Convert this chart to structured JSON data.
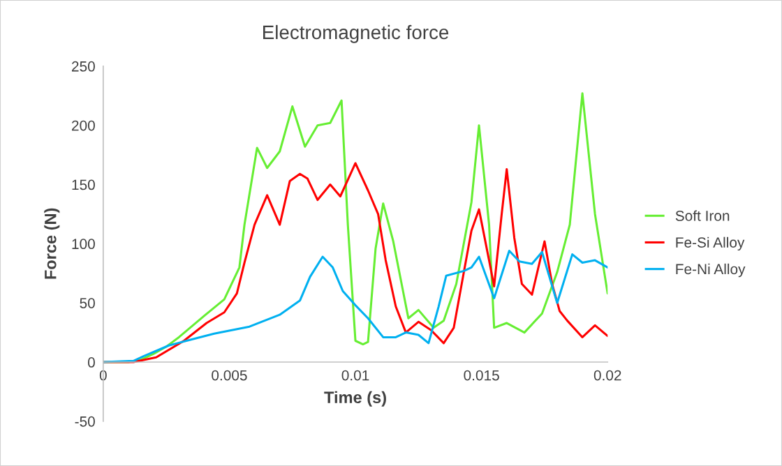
{
  "chart_data": {
    "type": "line",
    "title": "Electromagnetic force",
    "xlabel": "Time (s)",
    "ylabel": "Force (N)",
    "xlim": [
      0,
      0.02
    ],
    "ylim": [
      -50,
      250
    ],
    "xticks": [
      0,
      0.005,
      0.01,
      0.015,
      0.02
    ],
    "yticks": [
      -50,
      0,
      50,
      100,
      150,
      200,
      250
    ],
    "grid": false,
    "legend": "right",
    "marker": "none",
    "line_style": "solid",
    "series": [
      {
        "name": "Soft Iron",
        "color": "#66ee33",
        "x": [
          0,
          0.001,
          0.0015,
          0.002,
          0.0025,
          0.003,
          0.0035,
          0.004,
          0.0048,
          0.0054,
          0.0056,
          0.0061,
          0.0065,
          0.007,
          0.0075,
          0.008,
          0.0085,
          0.009,
          0.00945,
          0.0097,
          0.01,
          0.0103,
          0.0105,
          0.0108,
          0.0111,
          0.0115,
          0.0121,
          0.0125,
          0.0131,
          0.0135,
          0.014,
          0.0146,
          0.0149,
          0.0153,
          0.0155,
          0.016,
          0.0167,
          0.0174,
          0.018,
          0.0185,
          0.019,
          0.0195,
          0.02
        ],
        "values": [
          0,
          0,
          2,
          7,
          13,
          21,
          30,
          39,
          53,
          80,
          116,
          181,
          164,
          178,
          216,
          182,
          200,
          202,
          221,
          116,
          18,
          15,
          17,
          96,
          134,
          102,
          37,
          44,
          29,
          35,
          66,
          135,
          200,
          116,
          29,
          33,
          25,
          41,
          76,
          116,
          227,
          125,
          58
        ]
      },
      {
        "name": "Fe-Si Alloy",
        "color": "#ff0000",
        "x": [
          0,
          0.0012,
          0.0021,
          0.0032,
          0.0041,
          0.0048,
          0.0053,
          0.0056,
          0.006,
          0.0065,
          0.007,
          0.0074,
          0.0078,
          0.0081,
          0.0085,
          0.009,
          0.0094,
          0.01,
          0.0105,
          0.0109,
          0.0112,
          0.0116,
          0.012,
          0.0125,
          0.013,
          0.0135,
          0.0139,
          0.0143,
          0.0146,
          0.0149,
          0.0153,
          0.0155,
          0.0158,
          0.016,
          0.0163,
          0.0166,
          0.017,
          0.0175,
          0.0178,
          0.0181,
          0.0184,
          0.019,
          0.0195,
          0.02
        ],
        "values": [
          0,
          0,
          4,
          18,
          33,
          42,
          58,
          84,
          116,
          141,
          116,
          153,
          159,
          155,
          137,
          150,
          140,
          168,
          145,
          125,
          86,
          47,
          25,
          34,
          27,
          16,
          29,
          76,
          111,
          129,
          86,
          64,
          125,
          163,
          105,
          66,
          57,
          102,
          66,
          43,
          35,
          21,
          31,
          22
        ]
      },
      {
        "name": "Fe-Ni Alloy",
        "color": "#00b0f0",
        "x": [
          0,
          0.0012,
          0.0016,
          0.0026,
          0.0033,
          0.0044,
          0.0058,
          0.007,
          0.0078,
          0.0082,
          0.0087,
          0.0091,
          0.0095,
          0.01,
          0.0105,
          0.0111,
          0.0116,
          0.012,
          0.0125,
          0.0129,
          0.0133,
          0.0136,
          0.0143,
          0.0146,
          0.0149,
          0.0155,
          0.0161,
          0.0165,
          0.017,
          0.0174,
          0.018,
          0.0186,
          0.019,
          0.0195,
          0.02
        ],
        "values": [
          0,
          1,
          5,
          14,
          18,
          24,
          30,
          40,
          52,
          72,
          89,
          80,
          60,
          48,
          37,
          21,
          21,
          25,
          23,
          16,
          47,
          73,
          77,
          80,
          89,
          54,
          94,
          85,
          83,
          93,
          50,
          91,
          84,
          86,
          80
        ]
      }
    ]
  }
}
